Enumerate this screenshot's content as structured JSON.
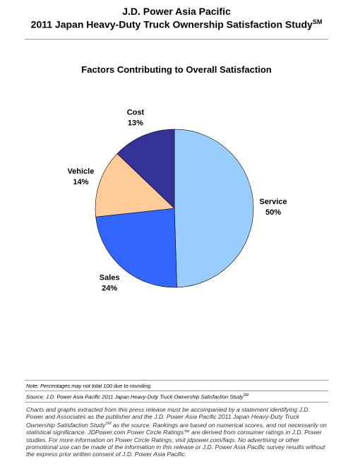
{
  "header": {
    "line1": "J.D. Power Asia Pacific",
    "line2": "2011 Japan Heavy-Duty Truck Ownership Satisfaction Study",
    "line2_sup": "SM"
  },
  "chart_data": {
    "type": "pie",
    "title": "Factors Contributing to Overall Satisfaction",
    "categories": [
      "Service",
      "Sales",
      "Vehicle",
      "Cost"
    ],
    "values": [
      50,
      24,
      14,
      13
    ],
    "value_labels": [
      "50%",
      "24%",
      "14%",
      "13%"
    ],
    "colors": [
      "#99ccff",
      "#3366ff",
      "#ffcc99",
      "#333399"
    ]
  },
  "note": "Note: Percentages may not total 100 due to rounding.",
  "source": {
    "text": "Source: J.D. Power Asia Pacific 2011 Japan Heavy-Duty Truck Ownership Satisfaction Study",
    "sup": "SM"
  },
  "disclaimer": {
    "before": "Charts and graphs extracted from this press release must be accompanied by a statement identifying J.D. Power and Associates as the publisher and the J.D. Power Asia Pacific 2011 Japan Heavy-Duty Truck Ownership Satisfaction Study",
    "sup": "SM",
    "after": " as the source. Rankings are based on numerical scores, and not necessarily on statistical significance. JDPower.com Power Circle Ratings™ are derived from consumer ratings in J.D. Power studies. For more information on Power Circle Ratings, visit jdpower.com/faqs. No advertising or other promotional use can be made of the information in this release or J.D. Power Asia Pacific survey results without the express prior written consent of J.D. Power Asia Pacific."
  }
}
